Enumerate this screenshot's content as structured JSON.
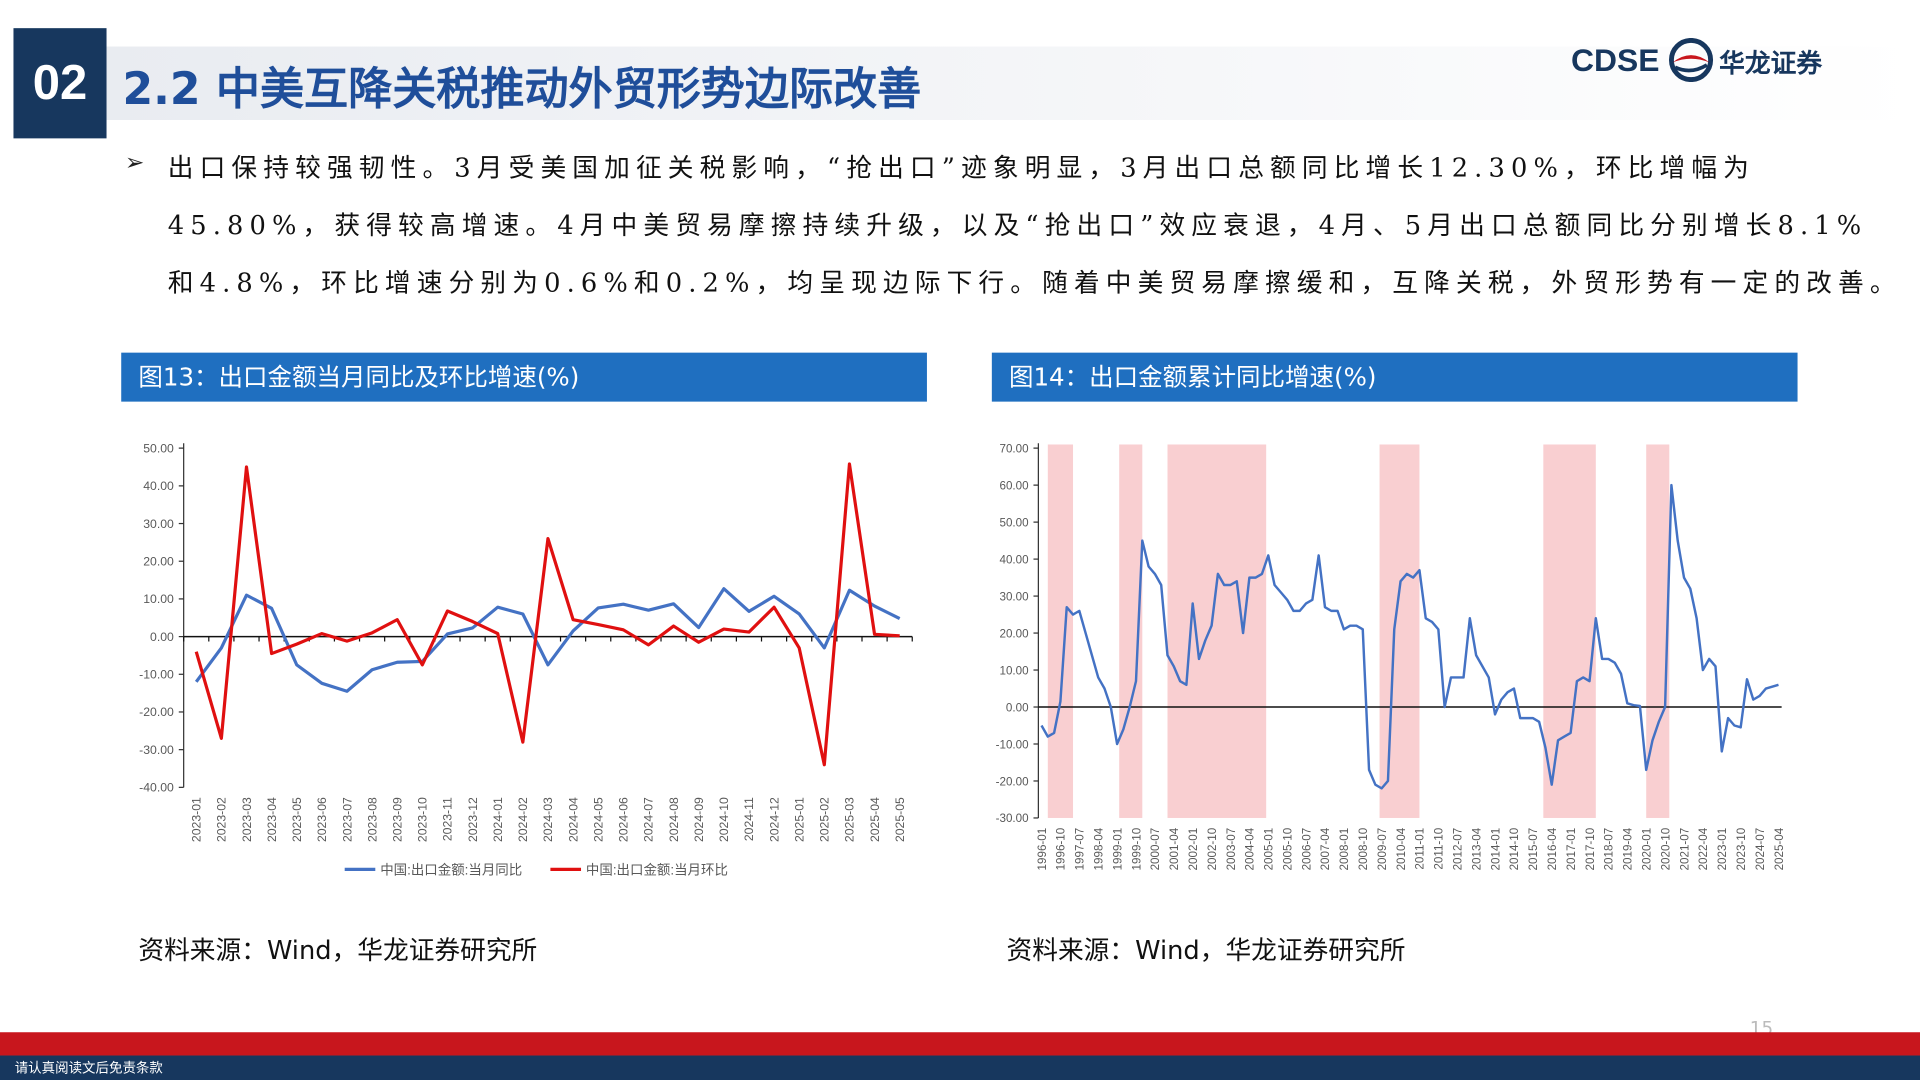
{
  "header": {
    "section": "02",
    "title": "2.2 中美互降关税推动外贸形势边际改善",
    "logo_text": "CDSE",
    "company": "华龙证券"
  },
  "body": {
    "lines": [
      "出口保持较强韧性。3月受美国加征关税影响，“抢出口”迹象明显，3月出口总额同比增长12.30%，环比增幅为",
      "45.80%，获得较高增速。4月中美贸易摩擦持续升级，以及“抢出口”效应衰退，4月、5月出口总额同比分别增长8.1%",
      "和4.8%，环比增速分别为0.6%和0.2%，均呈现边际下行。随着中美贸易摩擦缓和，互降关税，外贸形势有一定的改善。"
    ]
  },
  "chart_data": [
    {
      "type": "line",
      "title": "图13：出口金额当月同比及环比增速(%)",
      "source": "资料来源：Wind，华龙证券研究所",
      "categories": [
        "2023-01",
        "2023-02",
        "2023-03",
        "2023-04",
        "2023-05",
        "2023-06",
        "2023-07",
        "2023-08",
        "2023-09",
        "2023-10",
        "2023-11",
        "2023-12",
        "2024-01",
        "2024-02",
        "2024-03",
        "2024-04",
        "2024-05",
        "2024-06",
        "2024-07",
        "2024-08",
        "2024-09",
        "2024-10",
        "2024-11",
        "2024-12",
        "2025-01",
        "2025-02",
        "2025-03",
        "2025-04",
        "2025-05"
      ],
      "series": [
        {
          "name": "中国:出口金额:当月同比",
          "color": "#4472c4",
          "values": [
            -12,
            -3,
            11,
            7.5,
            -7.5,
            -12.4,
            -14.5,
            -8.8,
            -6.8,
            -6.6,
            0.7,
            2.3,
            7.8,
            6,
            -7.5,
            1.5,
            7.6,
            8.6,
            7,
            8.7,
            2.4,
            12.7,
            6.7,
            10.7,
            6,
            -3,
            12.3,
            8.1,
            4.8
          ]
        },
        {
          "name": "中国:出口金额:当月环比",
          "color": "#e01010",
          "values": [
            -4,
            -27,
            45,
            -4.5,
            -2,
            0.8,
            -1.2,
            1,
            4.5,
            -7.5,
            6.8,
            4,
            0.8,
            -28,
            26,
            4.5,
            3.2,
            1.8,
            -2.2,
            2.8,
            -1.5,
            2,
            1.2,
            7.8,
            -3,
            -34,
            45.8,
            0.6,
            0.2
          ]
        }
      ],
      "ylim": [
        -40,
        50
      ],
      "yticks": [
        {
          "value": -40,
          "label": "-40.00"
        },
        {
          "value": -30,
          "label": "-30.00"
        },
        {
          "value": -20,
          "label": "-20.00"
        },
        {
          "value": -10,
          "label": "-10.00"
        },
        {
          "value": 0,
          "label": "0.00"
        },
        {
          "value": 10,
          "label": "10.00"
        },
        {
          "value": 20,
          "label": "20.00"
        },
        {
          "value": 30,
          "label": "30.00"
        },
        {
          "value": 40,
          "label": "40.00"
        },
        {
          "value": 50,
          "label": "50.00"
        }
      ],
      "legend": "bottom"
    },
    {
      "type": "line",
      "title": "图14：出口金额累计同比增速(%)",
      "source": "资料来源：Wind，华龙证券研究所",
      "categories": [
        "1996-01",
        null,
        null,
        "1996-10",
        null,
        null,
        "1997-07",
        null,
        null,
        "1998-04",
        null,
        null,
        "1999-01",
        null,
        null,
        "1999-10",
        null,
        null,
        "2000-07",
        null,
        null,
        "2001-04",
        null,
        null,
        "2002-01",
        null,
        null,
        "2002-10",
        null,
        null,
        "2003-07",
        null,
        null,
        "2004-04",
        null,
        null,
        "2005-01",
        null,
        null,
        "2005-10",
        null,
        null,
        "2006-07",
        null,
        null,
        "2007-04",
        null,
        null,
        "2008-01",
        null,
        null,
        "2008-10",
        null,
        null,
        "2009-07",
        null,
        null,
        "2010-04",
        null,
        null,
        "2011-01",
        null,
        null,
        "2011-10",
        null,
        null,
        "2012-07",
        null,
        null,
        "2013-04",
        null,
        null,
        "2014-01",
        null,
        null,
        "2014-10",
        null,
        null,
        "2015-07",
        null,
        null,
        "2016-04",
        null,
        null,
        "2017-01",
        null,
        null,
        "2017-10",
        null,
        null,
        "2018-07",
        null,
        null,
        "2019-04",
        null,
        null,
        "2020-01",
        null,
        null,
        "2020-10",
        null,
        null,
        "2021-07",
        null,
        null,
        "2022-04",
        null,
        null,
        "2023-01",
        null,
        null,
        "2023-10",
        null,
        null,
        "2024-07",
        null,
        null,
        "2025-04"
      ],
      "series": [
        {
          "color": "#4472c4",
          "values": [
            -5,
            -8,
            -7,
            1.5,
            27,
            25,
            26,
            20,
            14,
            8,
            5,
            0,
            -10,
            -6,
            0,
            7,
            45,
            38,
            36,
            33,
            14,
            11,
            7,
            6,
            28,
            13,
            18,
            22,
            36,
            33,
            33,
            34,
            20,
            35,
            35,
            36,
            41,
            33,
            31,
            29,
            26,
            26,
            28,
            29,
            41,
            27,
            26,
            26,
            21,
            22,
            22,
            21,
            -17,
            -21,
            -22,
            -20,
            21,
            34,
            36,
            35,
            37,
            24,
            23,
            21,
            0,
            8,
            8,
            8,
            24,
            14,
            11,
            8,
            -2,
            2,
            4,
            5,
            -3,
            -3,
            -3,
            -4,
            -11,
            -21,
            -9,
            -8,
            -7,
            7,
            8,
            7,
            24,
            13,
            13,
            12,
            9,
            1,
            0.5,
            0.3,
            -17,
            -9,
            -4,
            0,
            60,
            45,
            35,
            32,
            24,
            10,
            13,
            11,
            -12,
            -3,
            -5,
            -5.5,
            7.5,
            2,
            3,
            5,
            5.5,
            6
          ]
        }
      ],
      "shaded_periods": [
        {
          "start": "1996-04",
          "end": "1997-04"
        },
        {
          "start": "1999-02",
          "end": "2000-01"
        },
        {
          "start": "2001-01",
          "end": "2004-12"
        },
        {
          "start": "2009-06",
          "end": "2011-01"
        },
        {
          "start": "2015-12",
          "end": "2018-01"
        },
        {
          "start": "2020-01",
          "end": "2020-12"
        }
      ],
      "shade_color": "#f9cfd1",
      "ylim": [
        -30,
        70
      ],
      "yticks": [
        {
          "value": -30,
          "label": "-30.00"
        },
        {
          "value": -20,
          "label": "-20.00"
        },
        {
          "value": -10,
          "label": "-10.00"
        },
        {
          "value": 0,
          "label": "0.00"
        },
        {
          "value": 10,
          "label": "10.00"
        },
        {
          "value": 20,
          "label": "20.00"
        },
        {
          "value": 30,
          "label": "30.00"
        },
        {
          "value": 40,
          "label": "40.00"
        },
        {
          "value": 50,
          "label": "50.00"
        },
        {
          "value": 60,
          "label": "60.00"
        },
        {
          "value": 70,
          "label": "70.00"
        }
      ]
    }
  ],
  "footer": {
    "page_number": 15,
    "disclaimer": "请认真阅读文后免责条款"
  }
}
